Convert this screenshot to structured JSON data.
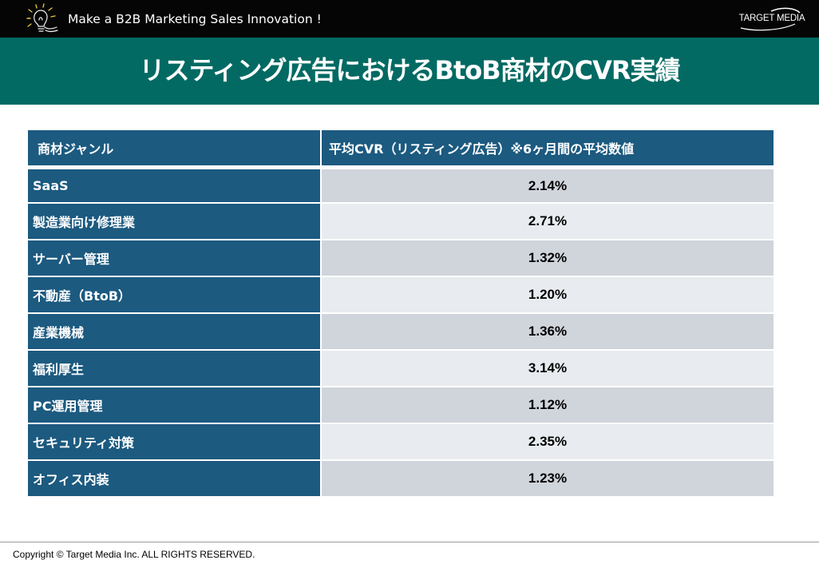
{
  "header": {
    "tagline": "Make a B2B Marketing Sales Innovation !",
    "logo_text": "TARGET MEDIA",
    "background": "#050505"
  },
  "title_bar": {
    "title": "リスティング広告におけるBtoB商材のCVR実績",
    "background": "#026a63"
  },
  "table": {
    "header_color": "#1c5a80",
    "columns": [
      "商材ジャンル",
      "平均CVR（リスティング広告）※6ヶ月間の平均数値"
    ],
    "rows": [
      {
        "genre": "SaaS",
        "cvr": "2.14%"
      },
      {
        "genre": "製造業向け修理業",
        "cvr": "2.71%"
      },
      {
        "genre": "サーバー管理",
        "cvr": "1.32%"
      },
      {
        "genre": "不動産（BtoB）",
        "cvr": "1.20%"
      },
      {
        "genre": "産業機械",
        "cvr": "1.36%"
      },
      {
        "genre": "福利厚生",
        "cvr": "3.14%"
      },
      {
        "genre": "PC運用管理",
        "cvr": "1.12%"
      },
      {
        "genre": "セキュリティ対策",
        "cvr": "2.35%"
      },
      {
        "genre": "オフィス内装",
        "cvr": "1.23%"
      }
    ]
  },
  "footer": {
    "copyright": "Copyright © Target Media Inc. ALL RIGHTS RESERVED."
  },
  "icons": {
    "header_left": "lightbulb-icon",
    "header_right": "target-media-logo"
  }
}
